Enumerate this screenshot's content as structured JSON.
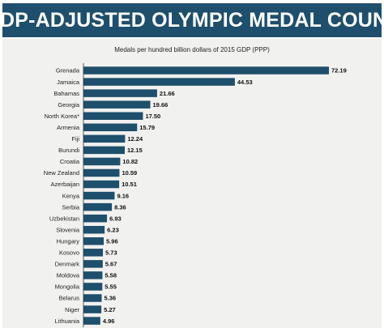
{
  "title": "GDP-ADJUSTED OLYMPIC MEDAL COUNT",
  "colors": {
    "banner": "#1e4f6c",
    "bar": "#1e4f6c",
    "panel": "#f1f1ef"
  },
  "chart_data": {
    "type": "bar",
    "orientation": "horizontal",
    "title": "GDP-ADJUSTED OLYMPIC MEDAL COUNT",
    "subtitle": "Medals per hundred billion dollars of 2015 GDP (PPP)",
    "xlabel": "",
    "ylabel": "",
    "xlim": [
      0,
      75
    ],
    "grid": false,
    "categories": [
      "Grenada",
      "Jamaica",
      "Bahamas",
      "Georgia",
      "North Korea*",
      "Armenia",
      "Fiji",
      "Burundi",
      "Croatia",
      "New Zealand",
      "Azerbaijan",
      "Kenya",
      "Serbia",
      "Uzbekistan",
      "Slovenia",
      "Hungary",
      "Kosovo",
      "Denmark",
      "Moldova",
      "Mongolia",
      "Belarus",
      "Niger",
      "Lithuania"
    ],
    "values": [
      72.19,
      44.53,
      21.66,
      19.66,
      17.5,
      15.79,
      12.24,
      12.15,
      10.82,
      10.59,
      10.51,
      9.16,
      8.36,
      6.93,
      6.23,
      5.96,
      5.73,
      5.67,
      5.58,
      5.55,
      5.36,
      5.27,
      4.96
    ],
    "value_labels": [
      "72.19",
      "44.53",
      "21.66",
      "19.66",
      "17.50",
      "15.79",
      "12.24",
      "12.15",
      "10.82",
      "10.59",
      "10.51",
      "9.16",
      "8.36",
      "6.93",
      "6.23",
      "5.96",
      "5.73",
      "5.67",
      "5.58",
      "5.55",
      "5.36",
      "5.27",
      "4.96"
    ]
  }
}
